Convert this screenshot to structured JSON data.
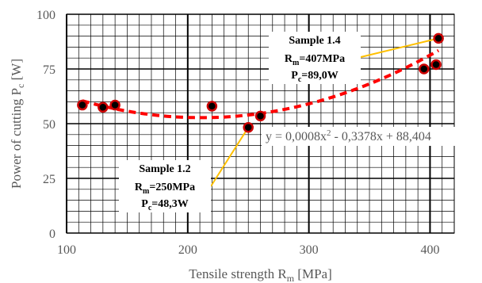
{
  "chart_data": {
    "type": "scatter",
    "xlabel": {
      "main": "Tensile strength R",
      "sub": "m",
      "unit": " [MPa]"
    },
    "ylabel": {
      "main": "Power of cutting P",
      "sub": "c",
      "unit": " [W]"
    },
    "xlim": [
      100,
      420
    ],
    "ylim": [
      0,
      100
    ],
    "x_ticks": [
      100,
      200,
      300,
      400
    ],
    "y_ticks": [
      0,
      25,
      50,
      75,
      100
    ],
    "x_minor_step": 10,
    "y_minor_step": 5,
    "grid": true,
    "series": [
      {
        "points": [
          {
            "x": 113,
            "y": 58.5
          },
          {
            "x": 130,
            "y": 57.5
          },
          {
            "x": 140,
            "y": 58.5
          },
          {
            "x": 220,
            "y": 58
          },
          {
            "x": 250,
            "y": 48.3
          },
          {
            "x": 260,
            "y": 53.5
          },
          {
            "x": 395,
            "y": 75
          },
          {
            "x": 405,
            "y": 77
          },
          {
            "x": 407,
            "y": 89
          }
        ],
        "marker_color": "#000000",
        "marker_edge": "#cc0000"
      }
    ],
    "trendline": {
      "type": "polynomial",
      "coefficients": [
        0.0008,
        -0.3378,
        88.404
      ],
      "x_range": [
        113,
        407
      ],
      "color": "#ff0000",
      "label": {
        "prefix": "y = 0,0008x",
        "sup": "2",
        "suffix": " - 0,3378x + 88,404"
      }
    },
    "annotations": [
      {
        "title": "Sample 1.2",
        "line2": {
          "main": "R",
          "sub": "m",
          "rest": "=250MPa"
        },
        "line3": {
          "main": "P",
          "sub": "c",
          "rest": "=48,3W"
        },
        "target": {
          "x": 250,
          "y": 48.3
        },
        "leader_color": "#ffc000"
      },
      {
        "title": "Sample 1.4",
        "line2": {
          "main": "R",
          "sub": "m",
          "rest": "=407MPa"
        },
        "line3": {
          "main": "P",
          "sub": "c",
          "rest": "=89,0W"
        },
        "target": {
          "x": 407,
          "y": 89
        },
        "leader_color": "#ffc000"
      }
    ]
  }
}
